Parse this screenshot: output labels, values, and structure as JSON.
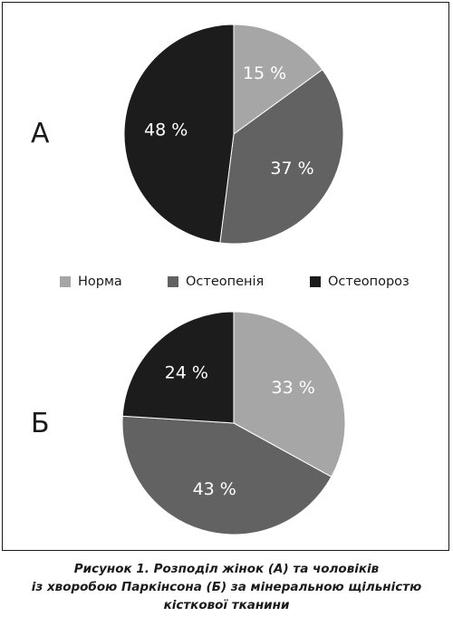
{
  "caption": {
    "line1": "Рисунок 1. Розподіл жінок (А) та чоловіків",
    "line2": "із хворобою Паркінсона (Б) за мінеральною щільністю",
    "line3": "кісткової тканини"
  },
  "legend": [
    {
      "label": "Норма",
      "color": "#a6a6a6"
    },
    {
      "label": "Остеопенія",
      "color": "#626262"
    },
    {
      "label": "Остеопороз",
      "color": "#1c1c1c"
    }
  ],
  "chart_data": [
    {
      "type": "pie",
      "panel_label": "А",
      "slices": [
        {
          "name": "Норма",
          "value": 15,
          "label": "15 %",
          "color": "#a6a6a6"
        },
        {
          "name": "Остеопенія",
          "value": 37,
          "label": "37 %",
          "color": "#626262"
        },
        {
          "name": "Остеопороз",
          "value": 48,
          "label": "48 %",
          "color": "#1c1c1c"
        }
      ]
    },
    {
      "type": "pie",
      "panel_label": "Б",
      "slices": [
        {
          "name": "Норма",
          "value": 33,
          "label": "33 %",
          "color": "#a6a6a6"
        },
        {
          "name": "Остеопенія",
          "value": 43,
          "label": "43 %",
          "color": "#626262"
        },
        {
          "name": "Остеопороз",
          "value": 24,
          "label": "24 %",
          "color": "#1c1c1c"
        }
      ]
    }
  ]
}
